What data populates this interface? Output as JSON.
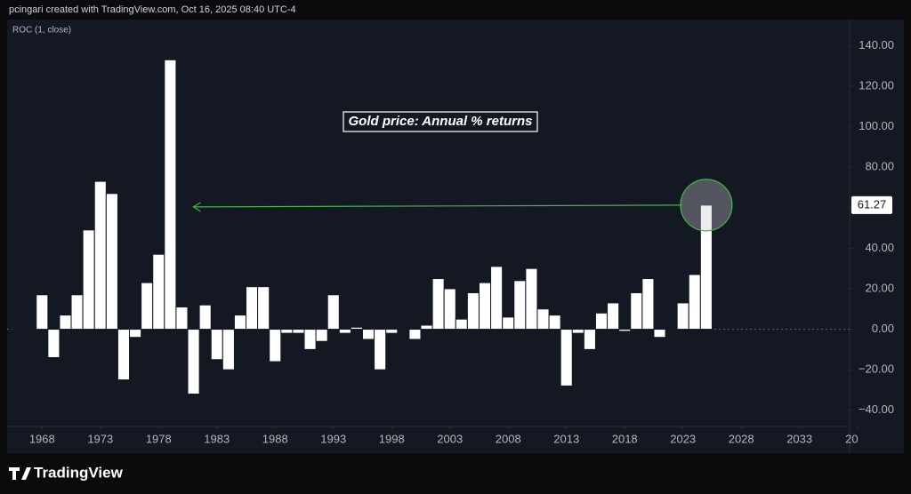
{
  "header": "pcingari created with TradingView.com, Oct 16, 2025 08:40 UTC-4",
  "brand": "TradingView",
  "chart_data": {
    "type": "bar",
    "indicator_label": "ROC (1, close)",
    "annotation": "Gold price: Annual % returns",
    "x": [
      1966,
      1967,
      1968,
      1969,
      1970,
      1971,
      1972,
      1973,
      1974,
      1975,
      1976,
      1977,
      1978,
      1979,
      1980,
      1981,
      1982,
      1983,
      1984,
      1985,
      1986,
      1987,
      1988,
      1989,
      1990,
      1991,
      1992,
      1993,
      1994,
      1995,
      1996,
      1997,
      1998,
      1999,
      2000,
      2001,
      2002,
      2003,
      2004,
      2005,
      2006,
      2007,
      2008,
      2009,
      2010,
      2011,
      2012,
      2013,
      2014,
      2015,
      2016,
      2017,
      2018,
      2019,
      2020,
      2021,
      2022,
      2023,
      2024,
      2025
    ],
    "values": [
      0.3,
      0.3,
      17,
      -14,
      7,
      17,
      49,
      73,
      67,
      -25,
      -4,
      23,
      37,
      133,
      11,
      -32,
      12,
      -15,
      -20,
      7,
      21,
      21,
      -16,
      -2,
      -2,
      -10,
      -6,
      17,
      -2,
      1,
      -5,
      -20,
      -2,
      0,
      -5,
      2,
      25,
      20,
      5,
      18,
      23,
      31,
      6,
      24,
      30,
      10,
      7,
      -28,
      -2,
      -10,
      8,
      13,
      -1,
      18,
      25,
      -4,
      -0.3,
      13,
      27,
      61.27
    ],
    "color": "#ffffff",
    "xlim": [
      1965,
      2037.3
    ],
    "xticks": [
      1968,
      1973,
      1978,
      1983,
      1988,
      1993,
      1998,
      2003,
      2008,
      2013,
      2018,
      2023,
      2028,
      2033,
      {
        "value": 2038,
        "label": "20"
      }
    ],
    "ylim": [
      -48,
      152
    ],
    "yticks": [
      {
        "value": 140,
        "label": "140.00"
      },
      {
        "value": 120,
        "label": "120.00"
      },
      {
        "value": 100,
        "label": "100.00"
      },
      {
        "value": 80,
        "label": "80.00"
      },
      {
        "value": 60,
        "label": "60.00"
      },
      {
        "value": 40,
        "label": "40.00"
      },
      {
        "value": 20,
        "label": "20.00"
      },
      {
        "value": 0,
        "label": "0.00"
      },
      {
        "value": -20,
        "label": "−20.00"
      },
      {
        "value": -40,
        "label": "−40.00"
      }
    ],
    "hidden_ytick_near_last": 60,
    "grid": false
  }
}
